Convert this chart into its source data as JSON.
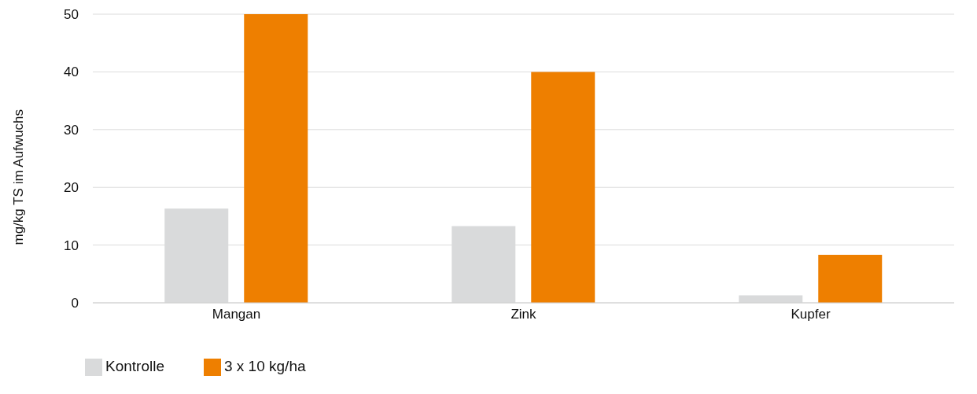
{
  "chart_data": {
    "type": "bar",
    "ylabel": "mg/kg TS im Aufwuchs",
    "categories": [
      "Mangan",
      "Zink",
      "Kupfer"
    ],
    "series": [
      {
        "name": "Kontrolle",
        "color": "#d9dadb",
        "values": [
          16.3,
          13.3,
          1.3
        ]
      },
      {
        "name": "3 x 10 kg/ha",
        "color": "#ee7f00",
        "values": [
          50,
          40,
          8.3
        ]
      }
    ],
    "ylim": [
      0,
      50
    ],
    "yticks": [
      0,
      10,
      20,
      30,
      40,
      50
    ],
    "grid": "y",
    "legend": "bottom left"
  }
}
